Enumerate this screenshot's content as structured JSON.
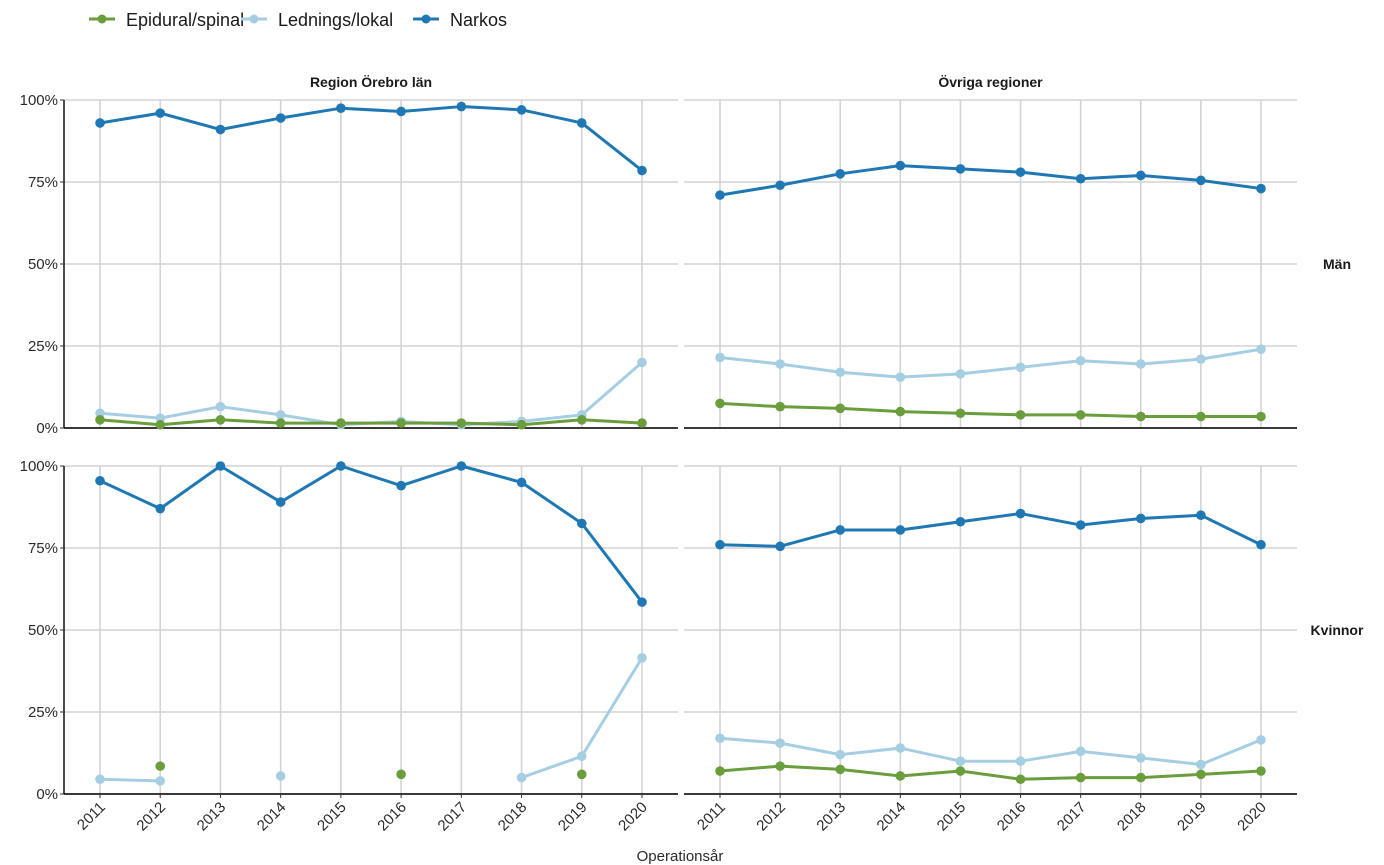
{
  "chart_data": {
    "type": "line",
    "xlabel": "Operationsår",
    "ylim": [
      0,
      100
    ],
    "y_ticks": [
      "0%",
      "25%",
      "50%",
      "75%",
      "100%"
    ],
    "y_tick_values": [
      0,
      25,
      50,
      75,
      100
    ],
    "x": [
      "2011",
      "2012",
      "2013",
      "2014",
      "2015",
      "2016",
      "2017",
      "2018",
      "2019",
      "2020"
    ],
    "grid": true,
    "legend_position": "top-left",
    "legend": [
      {
        "name": "Epidural/spinal",
        "color": "#6a9e3c"
      },
      {
        "name": "Lednings/lokal",
        "color": "#a6cee3"
      },
      {
        "name": "Narkos",
        "color": "#1f78b4"
      }
    ],
    "column_strips": [
      "Region Örebro län",
      "Övriga regioner"
    ],
    "row_strips": [
      "Män",
      "Kvinnor"
    ],
    "panels": [
      {
        "column": "Region Örebro län",
        "row": "Män",
        "series": [
          {
            "name": "Narkos",
            "values": [
              93,
              96,
              91,
              94.5,
              97.5,
              96.5,
              98,
              97,
              93,
              78.5
            ]
          },
          {
            "name": "Lednings/lokal",
            "values": [
              4.5,
              3,
              6.5,
              4,
              1,
              2,
              1,
              2,
              4,
              20
            ]
          },
          {
            "name": "Epidural/spinal",
            "values": [
              2.5,
              1,
              2.5,
              1.5,
              1.5,
              1.5,
              1.5,
              1,
              2.5,
              1.5
            ]
          }
        ]
      },
      {
        "column": "Övriga regioner",
        "row": "Män",
        "series": [
          {
            "name": "Narkos",
            "values": [
              71,
              74,
              77.5,
              80,
              79,
              78,
              76,
              77,
              75.5,
              73
            ]
          },
          {
            "name": "Lednings/lokal",
            "values": [
              21.5,
              19.5,
              17,
              15.5,
              16.5,
              18.5,
              20.5,
              19.5,
              21,
              24
            ]
          },
          {
            "name": "Epidural/spinal",
            "values": [
              7.5,
              6.5,
              6,
              5,
              4.5,
              4,
              4,
              3.5,
              3.5,
              3.5
            ]
          }
        ]
      },
      {
        "column": "Region Örebro län",
        "row": "Kvinnor",
        "series": [
          {
            "name": "Narkos",
            "values": [
              95.5,
              87,
              100,
              89,
              100,
              94,
              100,
              95,
              82.5,
              58.5
            ]
          },
          {
            "name": "Lednings/lokal",
            "values": [
              4.5,
              4,
              null,
              5.5,
              null,
              null,
              null,
              5,
              11.5,
              41.5
            ]
          },
          {
            "name": "Epidural/spinal",
            "values": [
              null,
              8.5,
              null,
              null,
              null,
              6,
              null,
              null,
              6,
              null
            ]
          }
        ]
      },
      {
        "column": "Övriga regioner",
        "row": "Kvinnor",
        "series": [
          {
            "name": "Narkos",
            "values": [
              76,
              75.5,
              80.5,
              80.5,
              83,
              85.5,
              82,
              84,
              85,
              76
            ]
          },
          {
            "name": "Lednings/lokal",
            "values": [
              17,
              15.5,
              12,
              14,
              10,
              10,
              13,
              11,
              9,
              16.5
            ]
          },
          {
            "name": "Epidural/spinal",
            "values": [
              7,
              8.5,
              7.5,
              5.5,
              7,
              4.5,
              5,
              5,
              6,
              7
            ]
          }
        ]
      }
    ]
  }
}
